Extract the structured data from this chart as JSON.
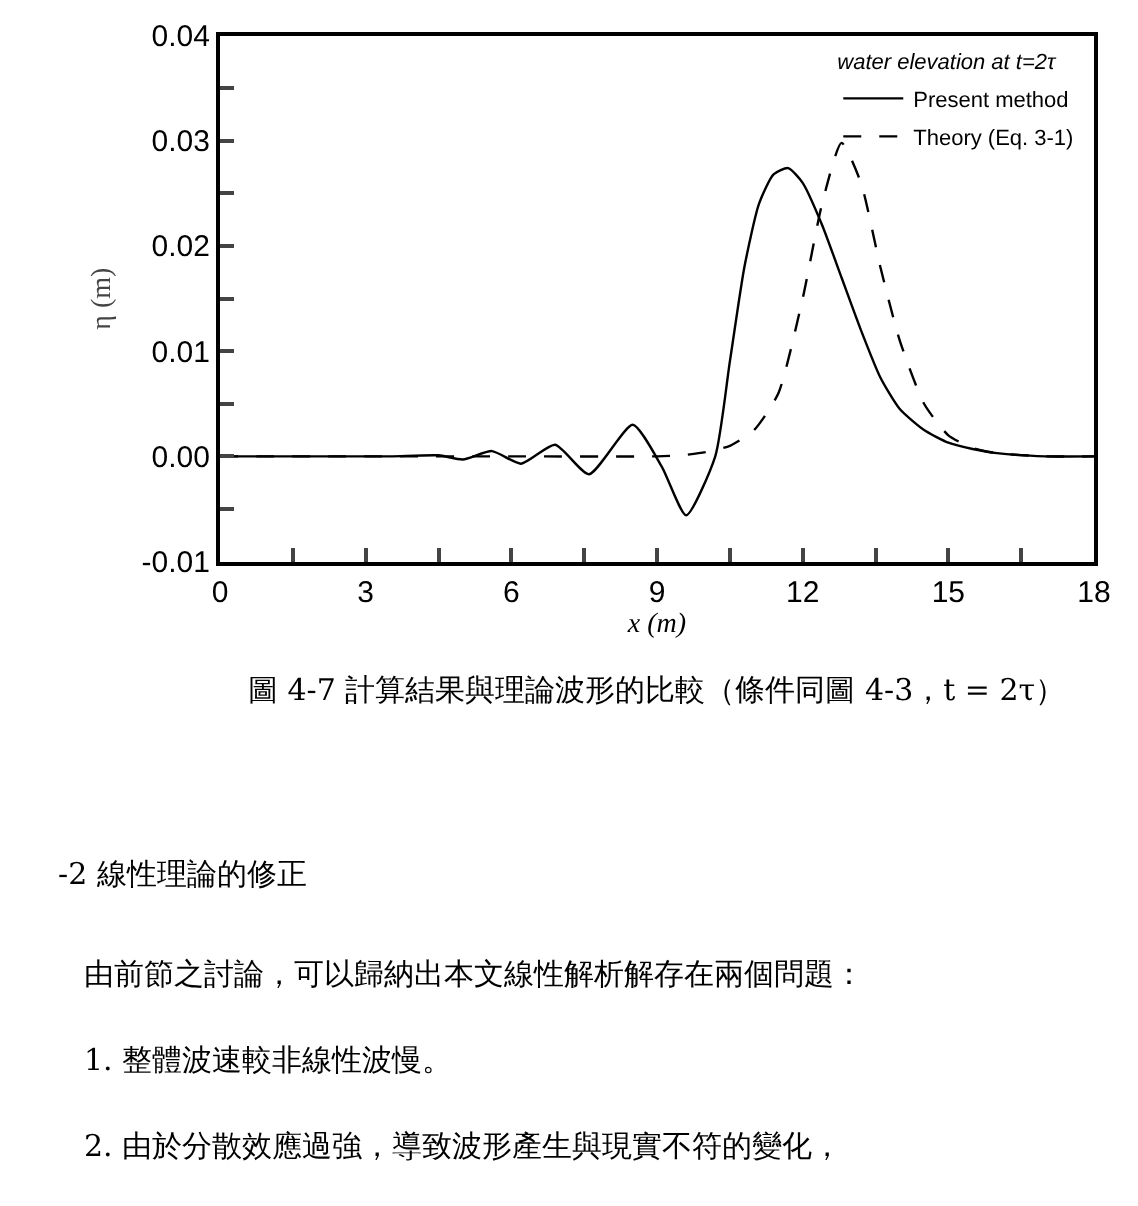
{
  "chart_data": {
    "type": "line",
    "xlabel": "x (m)",
    "ylabel": "η (m)",
    "legend_title": "water elevation at t=2τ",
    "legend": "top right",
    "marker": "none",
    "xlim": [
      0,
      18
    ],
    "xticks": [
      0,
      {
        "value": 1.5,
        "label": null
      },
      3,
      {
        "value": 4.5,
        "label": null
      },
      6,
      {
        "value": 7.5,
        "label": null
      },
      9,
      {
        "value": 10.5,
        "label": null
      },
      12,
      {
        "value": 13.5,
        "label": null
      },
      15,
      {
        "value": 16.5,
        "label": null
      },
      18
    ],
    "ylim": [
      -0.01,
      0.04
    ],
    "yticks": [
      {
        "value": -0.01,
        "label": "-0.01"
      },
      {
        "value": -0.005,
        "label": null
      },
      {
        "value": 0,
        "label": "0.00"
      },
      {
        "value": 0.005,
        "label": null
      },
      {
        "value": 0.01,
        "label": "0.01"
      },
      {
        "value": 0.015,
        "label": null
      },
      {
        "value": 0.02,
        "label": "0.02"
      },
      {
        "value": 0.025,
        "label": null
      },
      {
        "value": 0.03,
        "label": "0.03"
      },
      {
        "value": 0.035,
        "label": null
      },
      {
        "value": 0.04,
        "label": "0.04"
      }
    ],
    "series": [
      {
        "name": "Present method",
        "color": "#000000",
        "line_style": "solid",
        "x": [
          0,
          2,
          3.5,
          4.5,
          5.0,
          5.6,
          6.2,
          6.9,
          7.6,
          8.5,
          9.1,
          9.6,
          10.2,
          10.5,
          10.8,
          11.1,
          11.4,
          11.7,
          12.0,
          12.4,
          12.8,
          13.2,
          13.6,
          14.0,
          14.5,
          15.0,
          15.5,
          16.0,
          17.0,
          18.0
        ],
        "values": [
          0,
          0,
          0,
          0.0001,
          -0.0003,
          0.0005,
          -0.0007,
          0.0011,
          -0.0017,
          0.003,
          -0.001,
          -0.0056,
          0,
          0.009,
          0.018,
          0.024,
          0.0268,
          0.0274,
          0.026,
          0.022,
          0.017,
          0.012,
          0.0075,
          0.0045,
          0.0025,
          0.0013,
          0.0007,
          0.0003,
          0,
          0
        ]
      },
      {
        "name": "Theory (Eq. 3-1)",
        "color": "#000000",
        "line_style": "dashed",
        "x": [
          0,
          3,
          6,
          9,
          9.5,
          10,
          10.5,
          11,
          11.5,
          12,
          12.4,
          12.8,
          13.2,
          13.6,
          14,
          14.5,
          15,
          15.5,
          16,
          17,
          18
        ],
        "values": [
          0,
          0,
          0,
          0,
          0.0001,
          0.0004,
          0.001,
          0.0025,
          0.006,
          0.015,
          0.024,
          0.0298,
          0.026,
          0.018,
          0.011,
          0.005,
          0.002,
          0.0008,
          0.0003,
          0,
          0
        ]
      }
    ],
    "annotations": [
      "圖 4-7 計算結果與理論波形的比較（條件同圖 4-3，t = 2τ）",
      "-2 線性理論的修正",
      "由前節之討論，可以歸納出本文線性解析解存在兩個問題：",
      "1. 整體波速較非線性波慢。",
      "2. 由於分散效應過強，導致波形產生與現實不符的變化，"
    ]
  }
}
